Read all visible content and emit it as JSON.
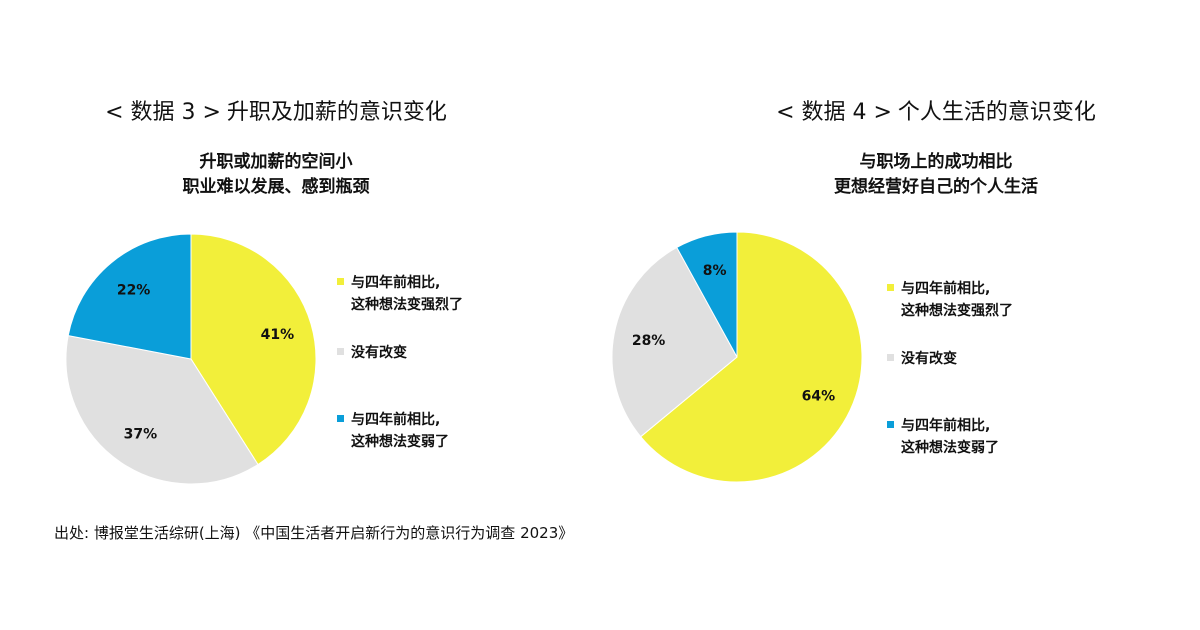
{
  "panels": [
    {
      "heading_prefix": "< 数据 3 >",
      "heading_text": "升职及加薪的意识变化",
      "chart_title_lines": [
        "升职或加薪的空间小",
        "职业难以发展、感到瓶颈"
      ]
    },
    {
      "heading_prefix": "< 数据 4 >",
      "heading_text": "个人生活的意识变化",
      "chart_title_lines": [
        "与职场上的成功相比",
        "更想经营好自己的个人生活"
      ]
    }
  ],
  "legend": [
    {
      "lines": [
        "与四年前相比,",
        "这种想法变强烈了"
      ],
      "color": "#f2ef3a"
    },
    {
      "lines": [
        "没有改变"
      ],
      "color": "#e0e0e0"
    },
    {
      "lines": [
        "与四年前相比,",
        "这种想法变弱了"
      ],
      "color": "#0a9ed9"
    }
  ],
  "chart_data": [
    {
      "type": "pie",
      "title": "升职或加薪的空间小 职业难以发展、感到瓶颈",
      "categories": [
        "与四年前相比,这种想法变强烈了",
        "没有改变",
        "与四年前相比,这种想法变弱了"
      ],
      "values": [
        41,
        37,
        22
      ],
      "labels": [
        "41%",
        "37%",
        "22%"
      ],
      "colors": [
        "#f2ef3a",
        "#e0e0e0",
        "#0a9ed9"
      ],
      "start": "12 o'clock",
      "direction": "clockwise",
      "legend_position": "right"
    },
    {
      "type": "pie",
      "title": "与职场上的成功相比 更想经营好自己的个人生活",
      "categories": [
        "与四年前相比,这种想法变强烈了",
        "没有改变",
        "与四年前相比,这种想法变弱了"
      ],
      "values": [
        64,
        28,
        8
      ],
      "labels": [
        "64%",
        "28%",
        "8%"
      ],
      "colors": [
        "#f2ef3a",
        "#e0e0e0",
        "#0a9ed9"
      ],
      "start": "12 o'clock",
      "direction": "clockwise",
      "legend_position": "right"
    }
  ],
  "source": "出处: 博报堂生活综研(上海) 《中国生活者开启新行为的意识行为调查 2023》"
}
